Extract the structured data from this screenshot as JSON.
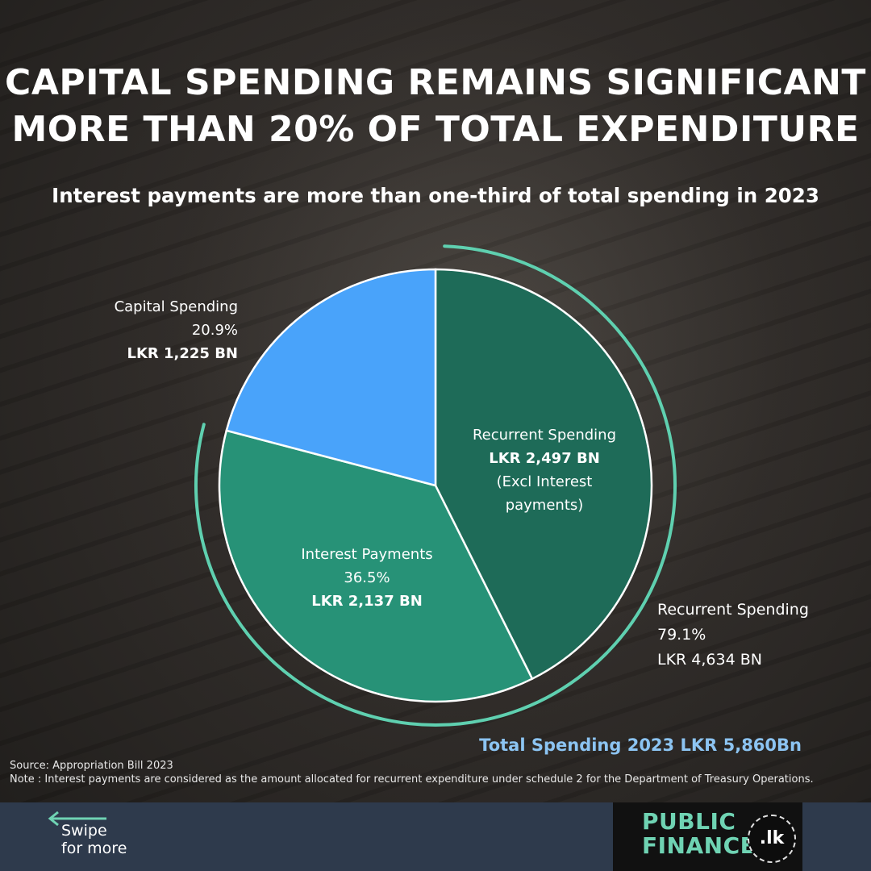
{
  "title_line1": "CAPITAL SPENDING REMAINS SIGNIFICANT",
  "title_line2": "MORE THAN 20% OF TOTAL EXPENDITURE",
  "subtitle": "Interest payments are more than one-third of total spending in 2023",
  "chart_data": {
    "type": "pie",
    "slices": [
      {
        "label": "Recurrent Spending",
        "value": 2497,
        "pct": 42.6,
        "amount": "LKR 2,497 BN",
        "note_line1": "(Excl Interest",
        "note_line2": "payments)",
        "color": "#1e6b58"
      },
      {
        "label": "Interest Payments",
        "value": 2137,
        "pct": 36.5,
        "pct_text": "36.5%",
        "amount": "LKR 2,137 BN",
        "color": "#279277"
      },
      {
        "label": "Capital Spending",
        "value": 1225,
        "pct": 20.9,
        "pct_text": "20.9%",
        "amount": "LKR 1,225 BN",
        "color": "#49a3fa"
      }
    ],
    "recurrent_total": {
      "label": "Recurrent Spending",
      "pct": 79.1,
      "pct_text": "79.1%",
      "amount": "LKR 4,634 BN",
      "color": "#5fd0b0"
    },
    "total": "Total Spending 2023 LKR 5,860Bn"
  },
  "source": "Source: Appropriation Bill 2023",
  "note": "Note : Interest payments are considered as the amount allocated for recurrent expenditure under schedule 2 for the Department of Treasury Operations.",
  "footer": {
    "swipe_line1": "Swipe",
    "swipe_line2": "for more",
    "logo_line1": "PUBLIC",
    "logo_line2": "FINANCE",
    "logo_badge": ".lk",
    "accent": "#6fd3b3"
  }
}
